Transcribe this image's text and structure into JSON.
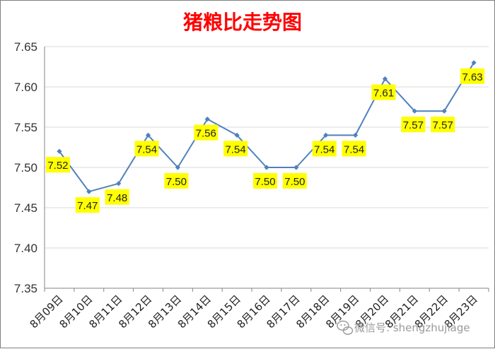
{
  "chart_data": {
    "type": "line",
    "title": "猪粮比走势图",
    "xlabel": "",
    "ylabel": "",
    "categories": [
      "8月09日",
      "8月10日",
      "8月11日",
      "8月12日",
      "8月13日",
      "8月14日",
      "8月15日",
      "8月16日",
      "8月17日",
      "8月18日",
      "8月19日",
      "8月20日",
      "8月21日",
      "8月22日",
      "8月23日"
    ],
    "series": [
      {
        "values": [
          7.52,
          7.47,
          7.48,
          7.54,
          7.5,
          7.56,
          7.54,
          7.5,
          7.5,
          7.54,
          7.54,
          7.61,
          7.57,
          7.57,
          7.63
        ]
      }
    ],
    "data_labels": [
      "7.52",
      "7.47",
      "7.48",
      "7.54",
      "7.50",
      "7.56",
      "7.54",
      "7.50",
      "7.50",
      "7.54",
      "7.54",
      "7.61",
      "7.57",
      "7.57",
      "7.63"
    ],
    "ylim": [
      7.35,
      7.65
    ],
    "yticks": [
      "7.35",
      "7.40",
      "7.45",
      "7.50",
      "7.55",
      "7.60",
      "7.65"
    ],
    "grid": true,
    "legend": "none",
    "colors": {
      "line": "#4f81bd",
      "label_bg": "#ffff00",
      "title": "#ff0000",
      "grid": "#d9d9d9"
    }
  },
  "watermark": {
    "text": "微信号: shengzhujiage",
    "icon": "wechat-icon"
  }
}
